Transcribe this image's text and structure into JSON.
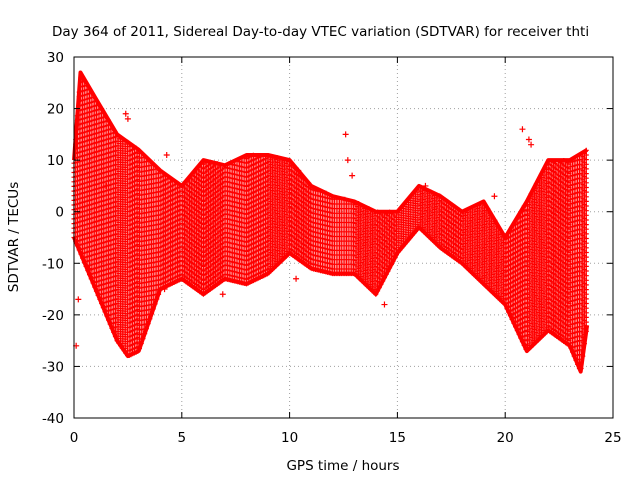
{
  "chart_data": {
    "type": "scatter",
    "title": "Day 364 of 2011, Sidereal Day-to-day VTEC variation (SDTVAR) for receiver thti",
    "xlabel": "GPS time / hours",
    "ylabel": "SDTVAR / TECUs",
    "xlim": [
      0,
      25
    ],
    "ylim": [
      -40,
      30
    ],
    "xticks": [
      "0",
      "5",
      "10",
      "15",
      "20",
      "25"
    ],
    "yticks": [
      "30",
      "20",
      "10",
      "0",
      "-10",
      "-20",
      "-30",
      "-40"
    ],
    "grid": true,
    "marker": "+",
    "color": "#ff0000",
    "bands": [
      {
        "name": "upper envelope",
        "x": [
          0.0,
          0.3,
          1.0,
          2.0,
          3.0,
          4.0,
          5.0,
          6.0,
          7.0,
          8.0,
          9.0,
          10.0,
          11.0,
          12.0,
          13.0,
          14.0,
          15.0,
          16.0,
          17.0,
          18.0,
          19.0,
          20.0,
          21.0,
          22.0,
          23.0,
          23.8
        ],
        "y": [
          10,
          27,
          22,
          15,
          12,
          8,
          5,
          10,
          9,
          11,
          11,
          10,
          5,
          3,
          2,
          0,
          0,
          5,
          3,
          0,
          2,
          -5,
          2,
          10,
          10,
          12
        ]
      },
      {
        "name": "lower envelope",
        "x": [
          0.0,
          0.5,
          1.0,
          2.0,
          2.5,
          3.0,
          4.0,
          5.0,
          6.0,
          7.0,
          8.0,
          9.0,
          10.0,
          11.0,
          12.0,
          13.0,
          14.0,
          15.0,
          16.0,
          17.0,
          18.0,
          19.0,
          20.0,
          21.0,
          22.0,
          23.0,
          23.5,
          23.8
        ],
        "y": [
          -5,
          -10,
          -15,
          -25,
          -28,
          -27,
          -15,
          -13,
          -16,
          -13,
          -14,
          -12,
          -8,
          -11,
          -12,
          -12,
          -16,
          -8,
          -3,
          -7,
          -10,
          -14,
          -18,
          -27,
          -23,
          -26,
          -31,
          -22
        ]
      }
    ],
    "outliers": [
      {
        "x": 0.1,
        "y": -26
      },
      {
        "x": 0.2,
        "y": -17
      },
      {
        "x": 0.7,
        "y": -11
      },
      {
        "x": 1.5,
        "y": 5
      },
      {
        "x": 2.4,
        "y": 19
      },
      {
        "x": 2.5,
        "y": 18
      },
      {
        "x": 3.9,
        "y": -16
      },
      {
        "x": 4.2,
        "y": -15
      },
      {
        "x": 4.3,
        "y": 11
      },
      {
        "x": 6.9,
        "y": -16
      },
      {
        "x": 10.3,
        "y": -13
      },
      {
        "x": 10.4,
        "y": 8
      },
      {
        "x": 12.6,
        "y": 15
      },
      {
        "x": 12.7,
        "y": 10
      },
      {
        "x": 12.9,
        "y": 7
      },
      {
        "x": 14.4,
        "y": -18
      },
      {
        "x": 16.3,
        "y": 5
      },
      {
        "x": 19.5,
        "y": 3
      },
      {
        "x": 20.8,
        "y": 16
      },
      {
        "x": 21.1,
        "y": 14
      },
      {
        "x": 21.2,
        "y": 13
      }
    ]
  }
}
